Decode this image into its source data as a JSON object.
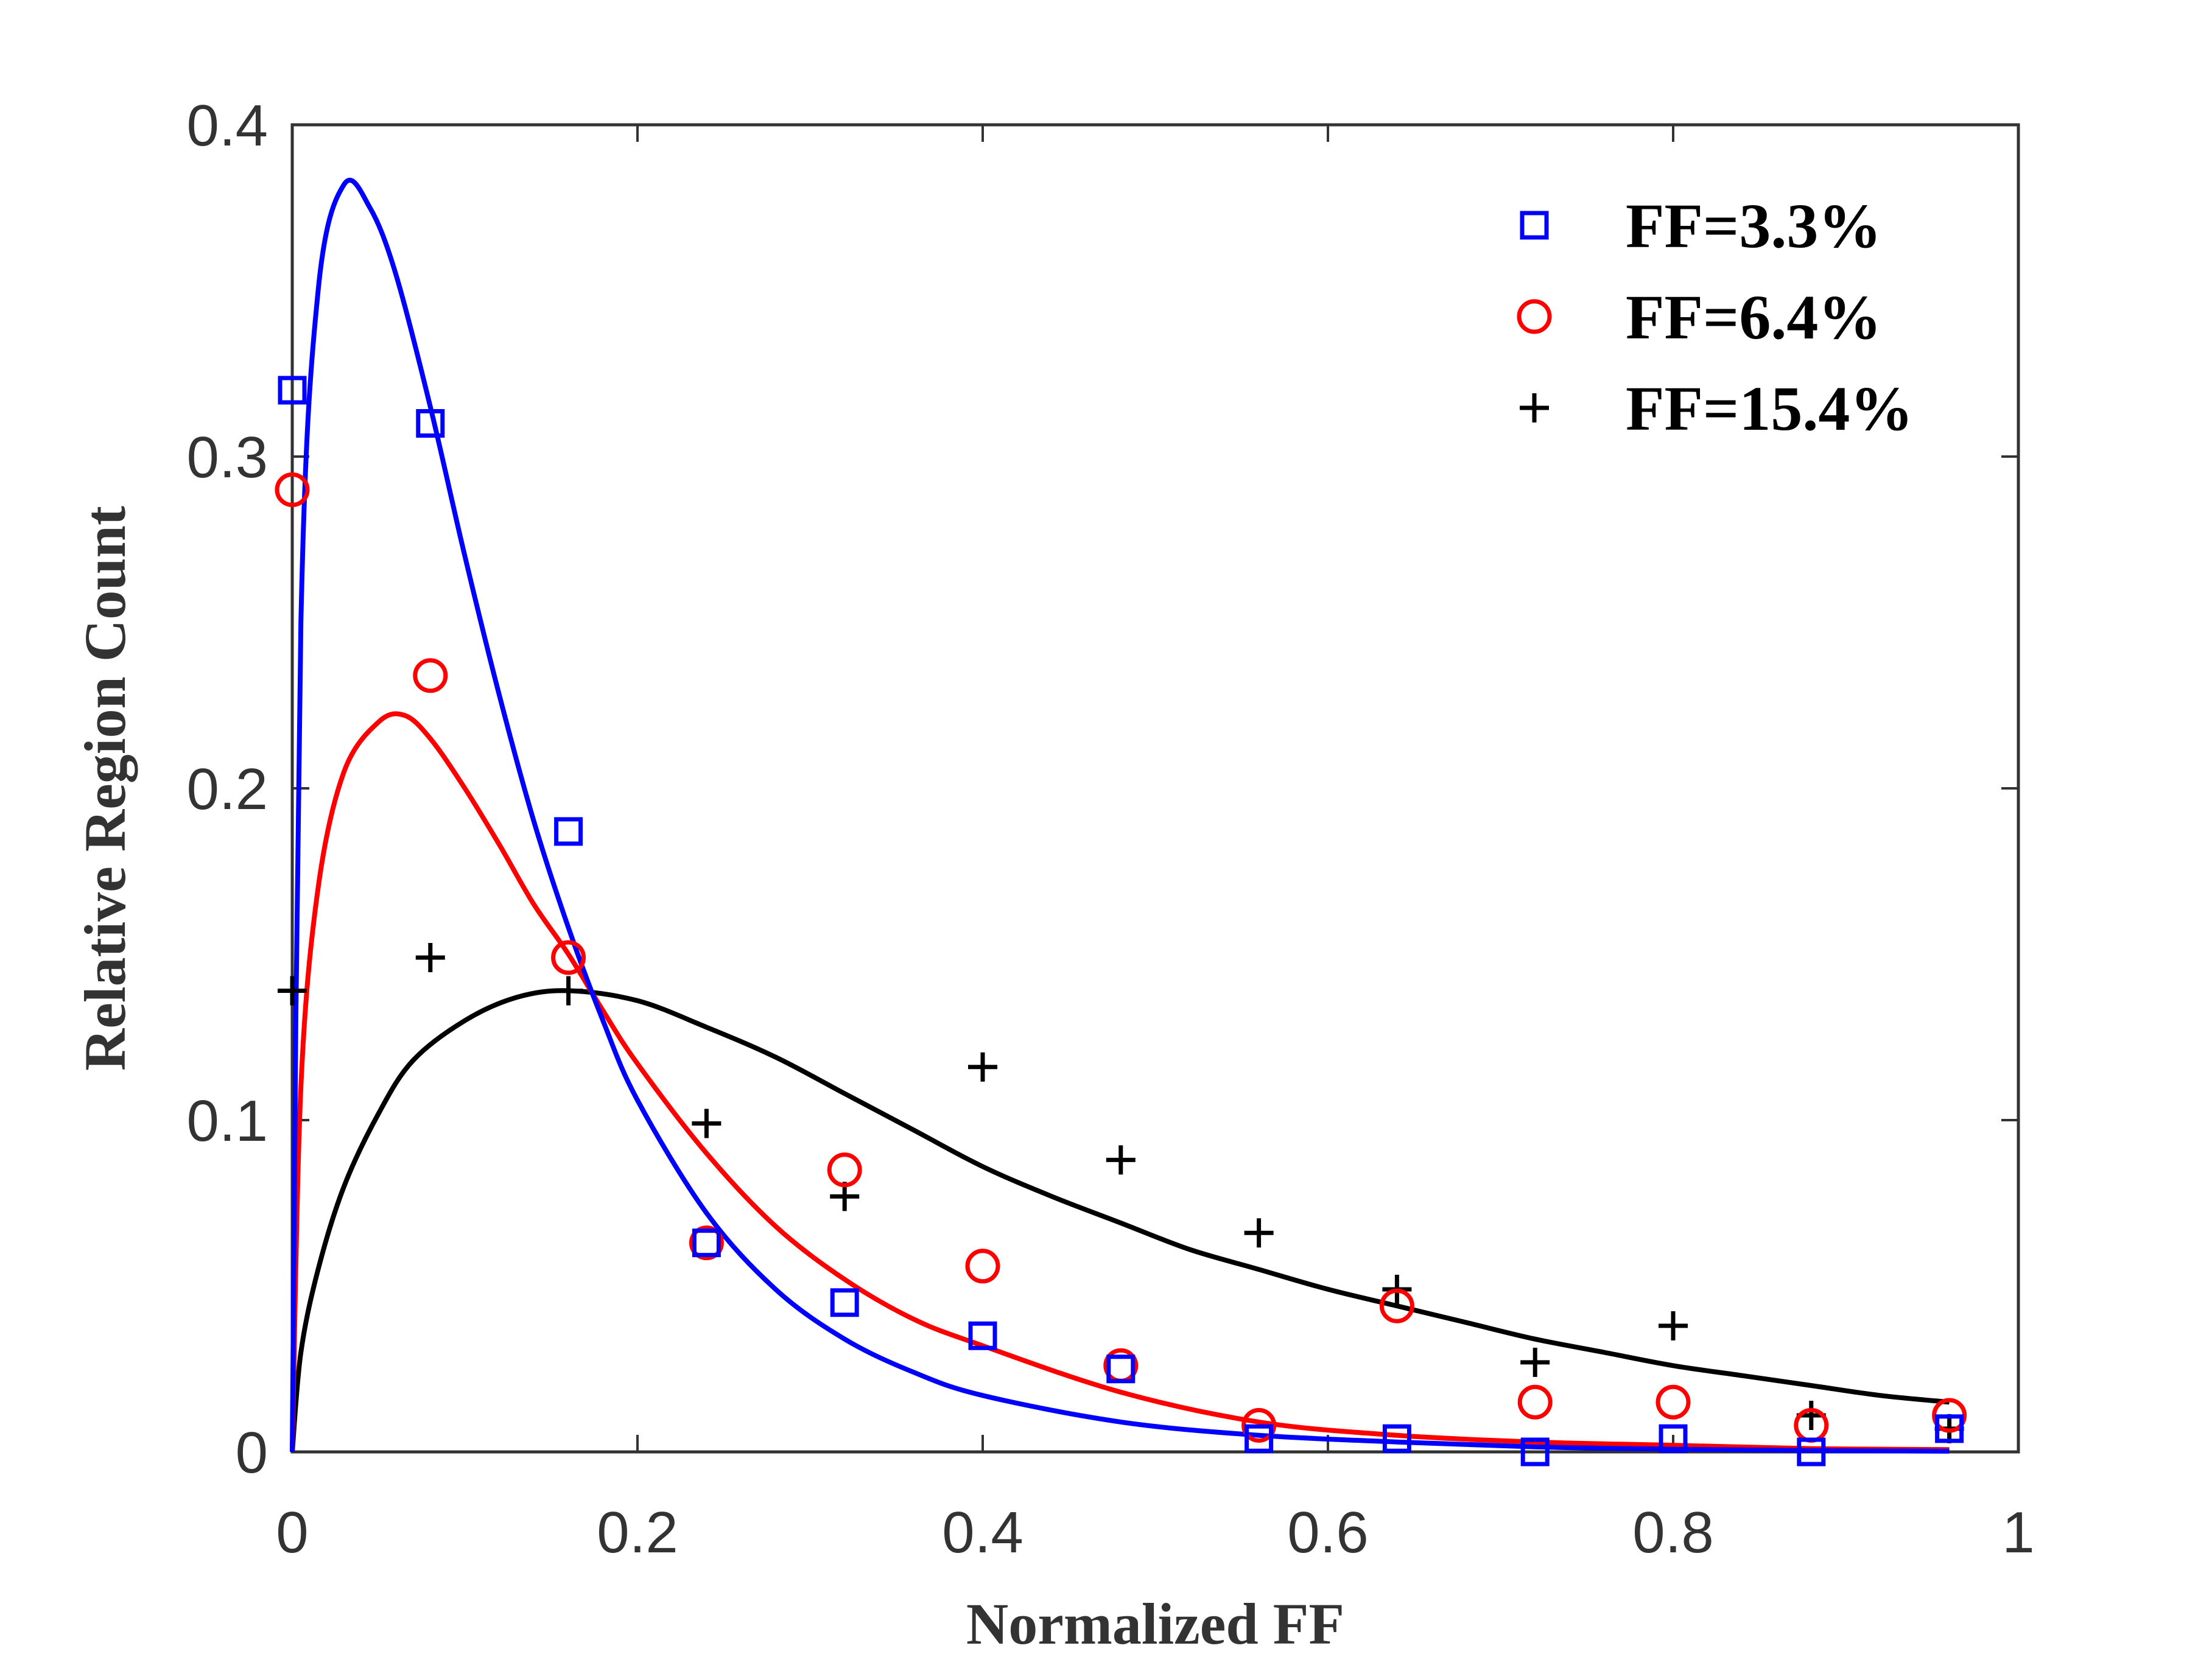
{
  "chart_data": {
    "type": "scatter",
    "title": "",
    "xlabel": "Normalized FF",
    "ylabel": "Relative Region Count",
    "xlim": [
      0,
      1
    ],
    "ylim": [
      0,
      0.4
    ],
    "xticks": [
      0,
      0.2,
      0.4,
      0.6,
      0.8,
      1
    ],
    "xtick_labels": [
      "0",
      "0.2",
      "0.4",
      "0.6",
      "0.8",
      "1"
    ],
    "yticks": [
      0,
      0.1,
      0.2,
      0.3,
      0.4
    ],
    "ytick_labels": [
      "0",
      "0.1",
      "0.2",
      "0.3",
      "0.4"
    ],
    "grid": false,
    "legend_position": "top-right",
    "x": [
      0,
      0.08,
      0.16,
      0.24,
      0.32,
      0.4,
      0.48,
      0.56,
      0.64,
      0.72,
      0.8,
      0.88,
      0.96
    ],
    "series": [
      {
        "name": "FF=3.3%",
        "color": "#0000ff",
        "marker": "square",
        "values": [
          0.32,
          0.31,
          0.187,
          0.063,
          0.045,
          0.035,
          0.025,
          0.004,
          0.004,
          0.0,
          0.004,
          0.0,
          0.007
        ],
        "fit": [
          [
            0,
            0
          ],
          [
            0.005,
            0.25
          ],
          [
            0.015,
            0.35
          ],
          [
            0.03,
            0.382
          ],
          [
            0.045,
            0.375
          ],
          [
            0.06,
            0.355
          ],
          [
            0.08,
            0.315
          ],
          [
            0.1,
            0.27
          ],
          [
            0.12,
            0.228
          ],
          [
            0.14,
            0.19
          ],
          [
            0.16,
            0.158
          ],
          [
            0.18,
            0.13
          ],
          [
            0.2,
            0.106
          ],
          [
            0.24,
            0.072
          ],
          [
            0.28,
            0.049
          ],
          [
            0.32,
            0.034
          ],
          [
            0.36,
            0.024
          ],
          [
            0.4,
            0.017
          ],
          [
            0.48,
            0.009
          ],
          [
            0.56,
            0.005
          ],
          [
            0.64,
            0.003
          ],
          [
            0.72,
            0.0015
          ],
          [
            0.8,
            0.0008
          ],
          [
            0.88,
            0.0004
          ],
          [
            0.96,
            0.0002
          ]
        ]
      },
      {
        "name": "FF=6.4%",
        "color": "#ff0000",
        "marker": "circle",
        "values": [
          0.29,
          0.234,
          0.149,
          0.063,
          0.085,
          0.056,
          0.026,
          0.008,
          0.044,
          0.015,
          0.015,
          0.008,
          0.011
        ],
        "fit": [
          [
            0,
            0
          ],
          [
            0.005,
            0.11
          ],
          [
            0.015,
            0.17
          ],
          [
            0.03,
            0.205
          ],
          [
            0.05,
            0.22
          ],
          [
            0.065,
            0.222
          ],
          [
            0.08,
            0.215
          ],
          [
            0.1,
            0.2
          ],
          [
            0.12,
            0.183
          ],
          [
            0.14,
            0.165
          ],
          [
            0.16,
            0.15
          ],
          [
            0.18,
            0.133
          ],
          [
            0.2,
            0.117
          ],
          [
            0.24,
            0.09
          ],
          [
            0.28,
            0.068
          ],
          [
            0.32,
            0.052
          ],
          [
            0.36,
            0.04
          ],
          [
            0.4,
            0.032
          ],
          [
            0.48,
            0.018
          ],
          [
            0.56,
            0.009
          ],
          [
            0.64,
            0.005
          ],
          [
            0.72,
            0.003
          ],
          [
            0.8,
            0.002
          ],
          [
            0.88,
            0.001
          ],
          [
            0.96,
            0.0007
          ]
        ]
      },
      {
        "name": "FF=15.4%",
        "color": "#000000",
        "marker": "plus",
        "values": [
          0.139,
          0.149,
          0.139,
          0.099,
          0.077,
          0.116,
          0.088,
          0.066,
          0.049,
          0.027,
          0.038,
          0.011,
          0.007
        ],
        "fit": [
          [
            0,
            0
          ],
          [
            0.005,
            0.03
          ],
          [
            0.015,
            0.055
          ],
          [
            0.03,
            0.08
          ],
          [
            0.05,
            0.102
          ],
          [
            0.07,
            0.118
          ],
          [
            0.1,
            0.13
          ],
          [
            0.13,
            0.137
          ],
          [
            0.16,
            0.139
          ],
          [
            0.2,
            0.136
          ],
          [
            0.24,
            0.128
          ],
          [
            0.28,
            0.119
          ],
          [
            0.32,
            0.108
          ],
          [
            0.36,
            0.097
          ],
          [
            0.4,
            0.086
          ],
          [
            0.44,
            0.077
          ],
          [
            0.48,
            0.069
          ],
          [
            0.52,
            0.061
          ],
          [
            0.56,
            0.055
          ],
          [
            0.6,
            0.049
          ],
          [
            0.64,
            0.044
          ],
          [
            0.68,
            0.039
          ],
          [
            0.72,
            0.034
          ],
          [
            0.76,
            0.03
          ],
          [
            0.8,
            0.026
          ],
          [
            0.84,
            0.023
          ],
          [
            0.88,
            0.02
          ],
          [
            0.92,
            0.017
          ],
          [
            0.96,
            0.015
          ]
        ]
      }
    ]
  }
}
